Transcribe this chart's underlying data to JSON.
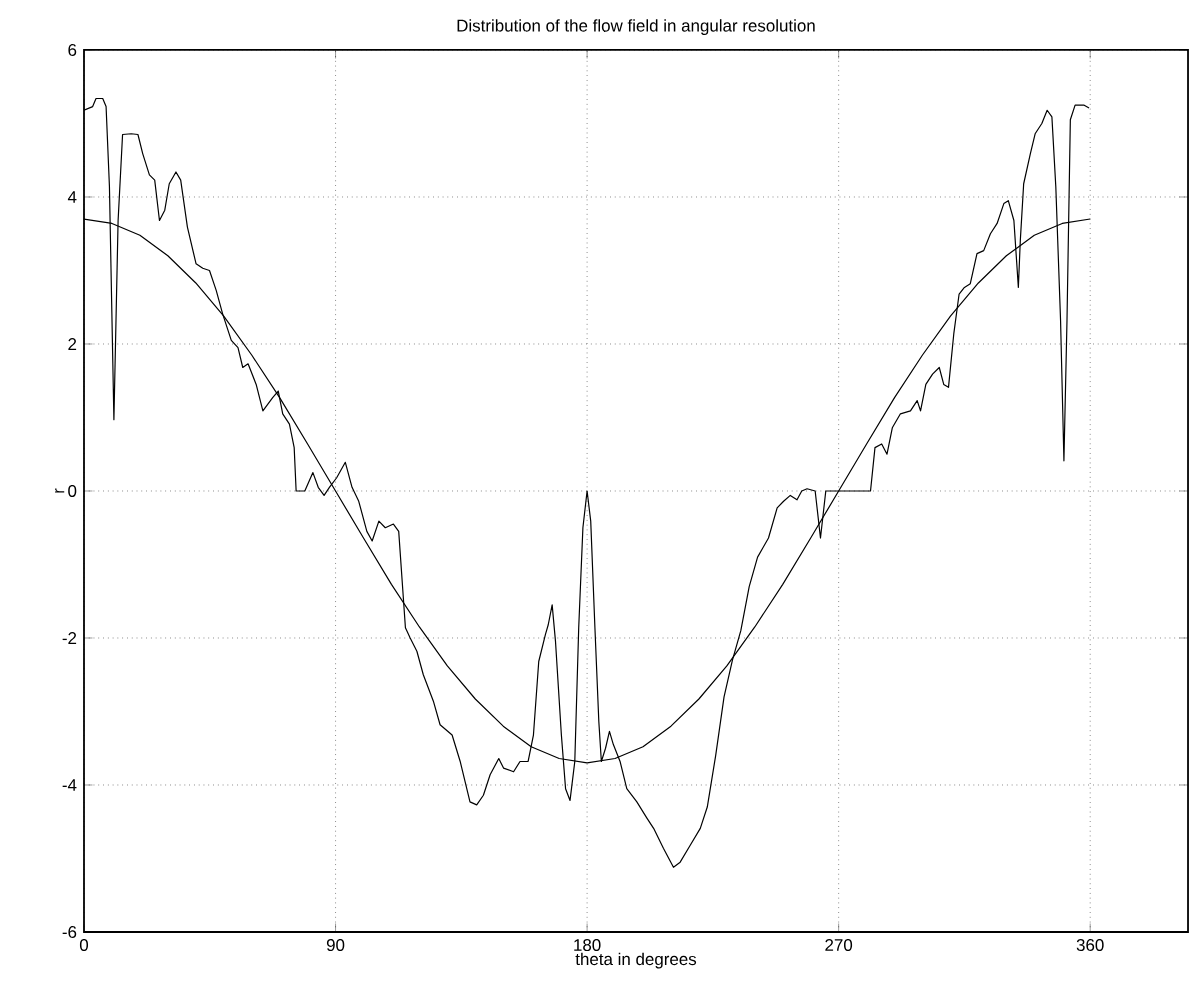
{
  "chart_data": {
    "type": "line",
    "title": "Distribution of the flow field in angular resolution",
    "xlabel": "theta in degrees",
    "ylabel": "r",
    "xlim": [
      0,
      395
    ],
    "ylim": [
      -6,
      6
    ],
    "xticks": [
      0,
      90,
      180,
      270,
      360
    ],
    "yticks": [
      -6,
      -4,
      -2,
      0,
      2,
      4,
      6
    ],
    "grid": true,
    "legend": false,
    "marker": "none",
    "line_style": "solid",
    "series": [
      {
        "color": "#000000",
        "x": [
          0,
          3.1,
          4.3,
          6.7,
          7.9,
          9.1,
          10.7,
          12.2,
          13.8,
          16.9,
          19.3,
          21.0,
          23.4,
          25.3,
          27.0,
          28.9,
          30.5,
          32.9,
          34.6,
          37.0,
          40.1,
          42.5,
          44.9,
          47.3,
          49.6,
          52.7,
          55.1,
          56.8,
          58.7,
          61.6,
          64.0,
          67.5,
          69.5,
          71.1,
          73.5,
          75.2,
          75.9,
          79.0,
          81.9,
          83.8,
          85.9,
          87.8,
          90.4,
          93.5,
          95.9,
          98.3,
          101.2,
          103.1,
          105.5,
          107.8,
          110.7,
          112.6,
          115.0,
          116.7,
          119.1,
          121.4,
          125.0,
          127.4,
          131.7,
          134.6,
          138.1,
          140.5,
          142.9,
          145.3,
          148.4,
          150.1,
          153.7,
          156.0,
          158.9,
          160.8,
          162.7,
          165.1,
          166.1,
          167.5,
          168.7,
          170.8,
          172.3,
          173.9,
          175.6,
          177.0,
          178.5,
          180.0,
          181.3,
          182.8,
          184.2,
          185.1,
          186.6,
          188.0,
          189.4,
          191.8,
          194.2,
          197.8,
          201.4,
          203.8,
          207.3,
          210.9,
          213.3,
          216.9,
          220.5,
          223,
          226,
          229,
          232,
          235,
          238,
          241,
          244.9,
          248.0,
          250.3,
          252.7,
          255.1,
          256.8,
          258.7,
          261.6,
          263.5,
          265.4,
          270.6,
          281.4,
          283.0,
          285.4,
          287.3,
          289.2,
          292.1,
          295.7,
          298.1,
          299.3,
          301.2,
          303.6,
          306.0,
          307.6,
          309.3,
          311.2,
          313.1,
          315.0,
          317.1,
          319.5,
          321.9,
          324.3,
          326.7,
          329.1,
          330.7,
          332.7,
          334.3,
          335.0,
          336.2,
          338.6,
          340.3,
          342.7,
          344.6,
          346.3,
          347.7,
          349.4,
          350.6,
          351.7,
          352.9,
          354.6,
          357.7,
          359.6
        ],
        "values": [
          5.18,
          5.23,
          5.34,
          5.34,
          5.23,
          4.14,
          0.97,
          3.68,
          4.85,
          4.86,
          4.85,
          4.59,
          4.3,
          4.23,
          3.68,
          3.82,
          4.18,
          4.34,
          4.23,
          3.59,
          3.09,
          3.03,
          3.0,
          2.73,
          2.41,
          2.05,
          1.95,
          1.68,
          1.73,
          1.45,
          1.09,
          1.27,
          1.36,
          1.05,
          0.91,
          0.59,
          0.0,
          0.0,
          0.25,
          0.05,
          -0.06,
          0.05,
          0.18,
          0.39,
          0.05,
          -0.14,
          -0.55,
          -0.68,
          -0.41,
          -0.5,
          -0.45,
          -0.55,
          -1.86,
          -2.0,
          -2.18,
          -2.5,
          -2.86,
          -3.18,
          -3.32,
          -3.68,
          -4.23,
          -4.27,
          -4.14,
          -3.86,
          -3.64,
          -3.77,
          -3.82,
          -3.68,
          -3.68,
          -3.32,
          -2.32,
          -1.95,
          -1.82,
          -1.55,
          -2.05,
          -3.32,
          -4.05,
          -4.21,
          -3.68,
          -1.86,
          -0.5,
          0.0,
          -0.41,
          -1.86,
          -3.14,
          -3.68,
          -3.5,
          -3.27,
          -3.45,
          -3.68,
          -4.05,
          -4.23,
          -4.45,
          -4.59,
          -4.86,
          -5.12,
          -5.05,
          -4.82,
          -4.59,
          -4.3,
          -3.6,
          -2.8,
          -2.3,
          -1.9,
          -1.3,
          -0.9,
          -0.64,
          -0.23,
          -0.14,
          -0.06,
          -0.12,
          0.0,
          0.03,
          0.0,
          -0.64,
          0.0,
          0.0,
          0.0,
          0.59,
          0.64,
          0.5,
          0.86,
          1.05,
          1.09,
          1.23,
          1.09,
          1.45,
          1.59,
          1.68,
          1.45,
          1.41,
          2.14,
          2.68,
          2.77,
          2.82,
          3.23,
          3.27,
          3.5,
          3.64,
          3.91,
          3.95,
          3.68,
          2.77,
          3.41,
          4.18,
          4.59,
          4.86,
          5.0,
          5.18,
          5.09,
          4.14,
          2.32,
          0.41,
          2.32,
          5.05,
          5.25,
          5.25,
          5.21
        ]
      },
      {
        "color": "#000000",
        "x": [
          0,
          10,
          20,
          30,
          40,
          50,
          60,
          70,
          80,
          90,
          100,
          110,
          120,
          130,
          140,
          150,
          160,
          170,
          180,
          190,
          200,
          210,
          220,
          230,
          240,
          250,
          260,
          270,
          280,
          290,
          300,
          310,
          320,
          330,
          340,
          350,
          360
        ],
        "values": [
          3.7,
          3.64,
          3.48,
          3.2,
          2.83,
          2.38,
          1.85,
          1.27,
          0.64,
          0,
          -0.64,
          -1.27,
          -1.85,
          -2.38,
          -2.83,
          -3.2,
          -3.48,
          -3.64,
          -3.7,
          -3.64,
          -3.48,
          -3.2,
          -2.83,
          -2.38,
          -1.85,
          -1.27,
          -0.64,
          0,
          0.64,
          1.27,
          1.85,
          2.38,
          2.83,
          3.2,
          3.48,
          3.64,
          3.7
        ]
      }
    ]
  }
}
